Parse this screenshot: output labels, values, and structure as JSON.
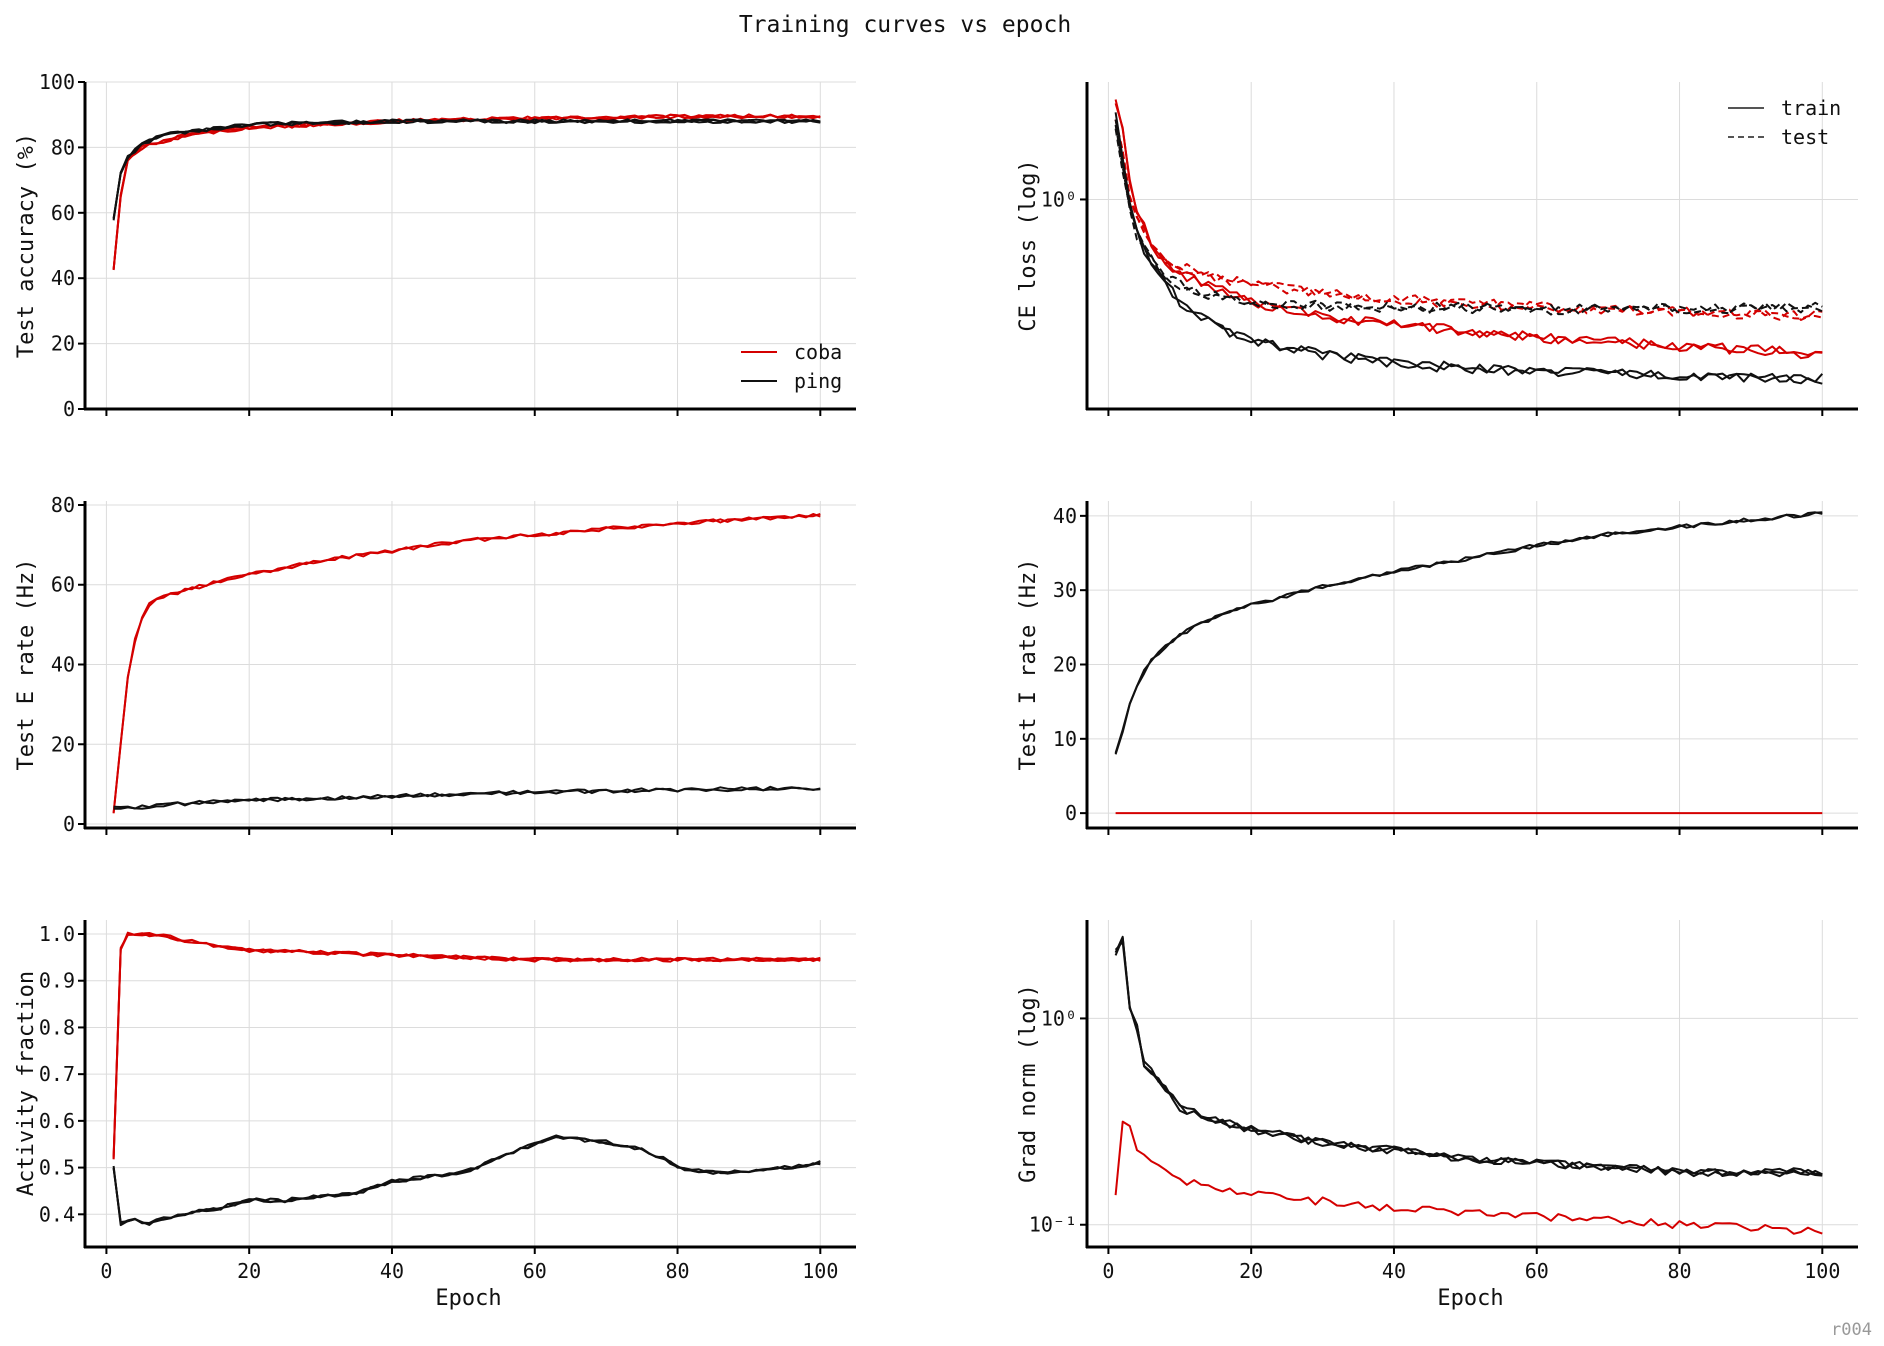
{
  "title": "Training curves vs epoch",
  "footer": "r004",
  "colors": {
    "coba": "#d40000",
    "ping": "#111111"
  },
  "chart_data": [
    {
      "id": "accuracy",
      "type": "line",
      "ylabel": "Test accuracy (%)",
      "xlabel": "",
      "xlim": [
        -3,
        105
      ],
      "ylim": [
        0,
        100
      ],
      "xticks": [
        "0",
        "20",
        "40",
        "60",
        "80",
        "100"
      ],
      "yticks": [
        "0",
        "20",
        "40",
        "60",
        "80",
        "100"
      ],
      "legend": {
        "position": "bottom-right",
        "entries": [
          "coba",
          "ping"
        ]
      },
      "series": [
        {
          "name": "coba",
          "style": "solid",
          "runs": 3,
          "x": [
            1,
            2,
            3,
            5,
            8,
            12,
            20,
            30,
            40,
            50,
            60,
            70,
            80,
            90,
            100
          ],
          "y": [
            43,
            65,
            76,
            80,
            82,
            84,
            86,
            87,
            88,
            88.5,
            89,
            89,
            89.5,
            89.5,
            89.5
          ]
        },
        {
          "name": "ping",
          "style": "solid",
          "runs": 3,
          "x": [
            1,
            2,
            3,
            5,
            8,
            12,
            20,
            30,
            40,
            50,
            60,
            70,
            80,
            90,
            100
          ],
          "y": [
            58,
            72,
            77,
            81,
            84,
            85,
            87,
            87.5,
            88,
            88,
            88,
            88,
            88,
            88,
            88
          ]
        }
      ]
    },
    {
      "id": "celoss",
      "type": "line",
      "ylabel": "CE loss (log)",
      "xlabel": "",
      "yscale": "log",
      "xlim": [
        -3,
        105
      ],
      "ylim": [
        0.17,
        2.7
      ],
      "xticks": [
        "0",
        "20",
        "40",
        "60",
        "80",
        "100"
      ],
      "yticks": [
        "10⁰"
      ],
      "legend": {
        "position": "top-right",
        "entries": [
          "train",
          "test"
        ]
      },
      "series": [
        {
          "name": "coba",
          "style": "solid",
          "runs": 2,
          "x": [
            1,
            2,
            3,
            4,
            6,
            8,
            10,
            15,
            20,
            30,
            40,
            50,
            60,
            70,
            80,
            90,
            100
          ],
          "y": [
            2.3,
            1.8,
            1.2,
            0.9,
            0.68,
            0.58,
            0.53,
            0.47,
            0.42,
            0.37,
            0.345,
            0.33,
            0.31,
            0.3,
            0.29,
            0.28,
            0.27
          ]
        },
        {
          "name": "coba",
          "style": "dashed",
          "runs": 2,
          "x": [
            1,
            2,
            3,
            4,
            6,
            8,
            10,
            15,
            20,
            30,
            40,
            50,
            60,
            70,
            80,
            90,
            100
          ],
          "y": [
            2.0,
            1.5,
            1.05,
            0.85,
            0.68,
            0.61,
            0.57,
            0.52,
            0.49,
            0.45,
            0.43,
            0.415,
            0.405,
            0.395,
            0.385,
            0.38,
            0.375
          ]
        },
        {
          "name": "ping",
          "style": "solid",
          "runs": 2,
          "x": [
            1,
            2,
            3,
            4,
            6,
            8,
            10,
            15,
            20,
            30,
            40,
            50,
            60,
            70,
            80,
            90,
            100
          ],
          "y": [
            2.0,
            1.4,
            0.95,
            0.75,
            0.57,
            0.49,
            0.42,
            0.34,
            0.3,
            0.27,
            0.25,
            0.24,
            0.235,
            0.23,
            0.225,
            0.22,
            0.22
          ]
        },
        {
          "name": "ping",
          "style": "dashed",
          "runs": 2,
          "x": [
            1,
            2,
            3,
            4,
            6,
            8,
            10,
            15,
            20,
            30,
            40,
            50,
            60,
            70,
            80,
            90,
            100
          ],
          "y": [
            1.85,
            1.3,
            0.92,
            0.74,
            0.6,
            0.53,
            0.49,
            0.44,
            0.42,
            0.405,
            0.4,
            0.4,
            0.395,
            0.395,
            0.4,
            0.4,
            0.4
          ]
        }
      ]
    },
    {
      "id": "erate",
      "type": "line",
      "ylabel": "Test E rate (Hz)",
      "xlabel": "",
      "xlim": [
        -3,
        105
      ],
      "ylim": [
        -1,
        81
      ],
      "xticks": [
        "0",
        "20",
        "40",
        "60",
        "80",
        "100"
      ],
      "yticks": [
        "0",
        "20",
        "40",
        "60",
        "80"
      ],
      "series": [
        {
          "name": "coba",
          "style": "solid",
          "runs": 2,
          "x": [
            1,
            2,
            3,
            4,
            5,
            6,
            8,
            10,
            15,
            20,
            30,
            40,
            50,
            60,
            70,
            80,
            90,
            100
          ],
          "y": [
            3,
            20,
            37,
            46,
            52,
            55,
            57,
            58,
            60.5,
            62.5,
            66,
            68.5,
            71,
            72.5,
            74,
            75.5,
            76.5,
            77.5
          ]
        },
        {
          "name": "ping",
          "style": "solid",
          "runs": 2,
          "x": [
            1,
            3,
            5,
            10,
            20,
            30,
            40,
            50,
            60,
            70,
            80,
            90,
            100
          ],
          "y": [
            4,
            4,
            4.3,
            5,
            6,
            6.5,
            7,
            7.5,
            8,
            8.3,
            8.6,
            8.8,
            9
          ]
        }
      ]
    },
    {
      "id": "irate",
      "type": "line",
      "ylabel": "Test I rate (Hz)",
      "xlabel": "",
      "xlim": [
        -3,
        105
      ],
      "ylim": [
        -2,
        42
      ],
      "xticks": [
        "0",
        "20",
        "40",
        "60",
        "80",
        "100"
      ],
      "yticks": [
        "0",
        "10",
        "20",
        "30",
        "40"
      ],
      "series": [
        {
          "name": "ping",
          "style": "solid",
          "runs": 2,
          "x": [
            1,
            2,
            3,
            4,
            5,
            6,
            8,
            10,
            15,
            20,
            25,
            30,
            40,
            50,
            60,
            70,
            80,
            90,
            100
          ],
          "y": [
            8,
            11,
            14.5,
            17,
            19,
            20.5,
            22.5,
            24,
            26.5,
            28,
            29.2,
            30.5,
            32.5,
            34.2,
            36,
            37.5,
            38.5,
            39.5,
            40.3
          ]
        },
        {
          "name": "coba",
          "style": "solid",
          "runs": 1,
          "x": [
            1,
            100
          ],
          "y": [
            0,
            0
          ]
        }
      ]
    },
    {
      "id": "activity",
      "type": "line",
      "ylabel": "Activity fraction",
      "xlabel": "Epoch",
      "xlim": [
        -3,
        105
      ],
      "ylim": [
        0.33,
        1.03
      ],
      "xticks": [
        "0",
        "20",
        "40",
        "60",
        "80",
        "100"
      ],
      "yticks": [
        "0.4",
        "0.5",
        "0.6",
        "0.7",
        "0.8",
        "0.9",
        "1.0"
      ],
      "series": [
        {
          "name": "coba",
          "style": "solid",
          "runs": 3,
          "x": [
            1,
            2,
            3,
            5,
            8,
            10,
            15,
            20,
            30,
            40,
            50,
            60,
            70,
            80,
            90,
            100
          ],
          "y": [
            0.52,
            0.97,
            1.0,
            1.0,
            0.995,
            0.99,
            0.975,
            0.965,
            0.96,
            0.955,
            0.95,
            0.945,
            0.945,
            0.945,
            0.945,
            0.945
          ]
        },
        {
          "name": "ping",
          "style": "solid",
          "runs": 3,
          "x": [
            1,
            2,
            4,
            6,
            8,
            10,
            15,
            20,
            25,
            30,
            35,
            40,
            45,
            50,
            55,
            60,
            63,
            66,
            70,
            75,
            78,
            80,
            85,
            90,
            95,
            100
          ],
          "y": [
            0.5,
            0.38,
            0.39,
            0.38,
            0.39,
            0.4,
            0.41,
            0.43,
            0.43,
            0.44,
            0.445,
            0.47,
            0.48,
            0.49,
            0.52,
            0.55,
            0.565,
            0.56,
            0.555,
            0.54,
            0.52,
            0.5,
            0.49,
            0.49,
            0.5,
            0.51
          ]
        }
      ]
    },
    {
      "id": "gradnorm",
      "type": "line",
      "ylabel": "Grad norm (log)",
      "xlabel": "Epoch",
      "yscale": "log",
      "xlim": [
        -3,
        105
      ],
      "ylim": [
        0.078,
        3.0
      ],
      "xticks": [
        "0",
        "20",
        "40",
        "60",
        "80",
        "100"
      ],
      "yticks": [
        "10⁻¹",
        "10⁰"
      ],
      "series": [
        {
          "name": "ping",
          "style": "solid",
          "runs": 3,
          "x": [
            1,
            2,
            3,
            4,
            5,
            6,
            8,
            10,
            15,
            20,
            30,
            40,
            50,
            60,
            70,
            80,
            90,
            100
          ],
          "y": [
            2.1,
            2.4,
            1.1,
            0.9,
            0.6,
            0.55,
            0.45,
            0.37,
            0.32,
            0.29,
            0.25,
            0.23,
            0.21,
            0.2,
            0.19,
            0.18,
            0.18,
            0.18
          ]
        },
        {
          "name": "coba",
          "style": "solid",
          "runs": 1,
          "x": [
            1,
            2,
            3,
            4,
            5,
            6,
            8,
            10,
            15,
            20,
            30,
            40,
            50,
            60,
            70,
            80,
            90,
            100
          ],
          "y": [
            0.14,
            0.31,
            0.29,
            0.24,
            0.21,
            0.2,
            0.18,
            0.165,
            0.15,
            0.14,
            0.13,
            0.12,
            0.115,
            0.11,
            0.105,
            0.1,
            0.097,
            0.092
          ]
        }
      ]
    }
  ]
}
